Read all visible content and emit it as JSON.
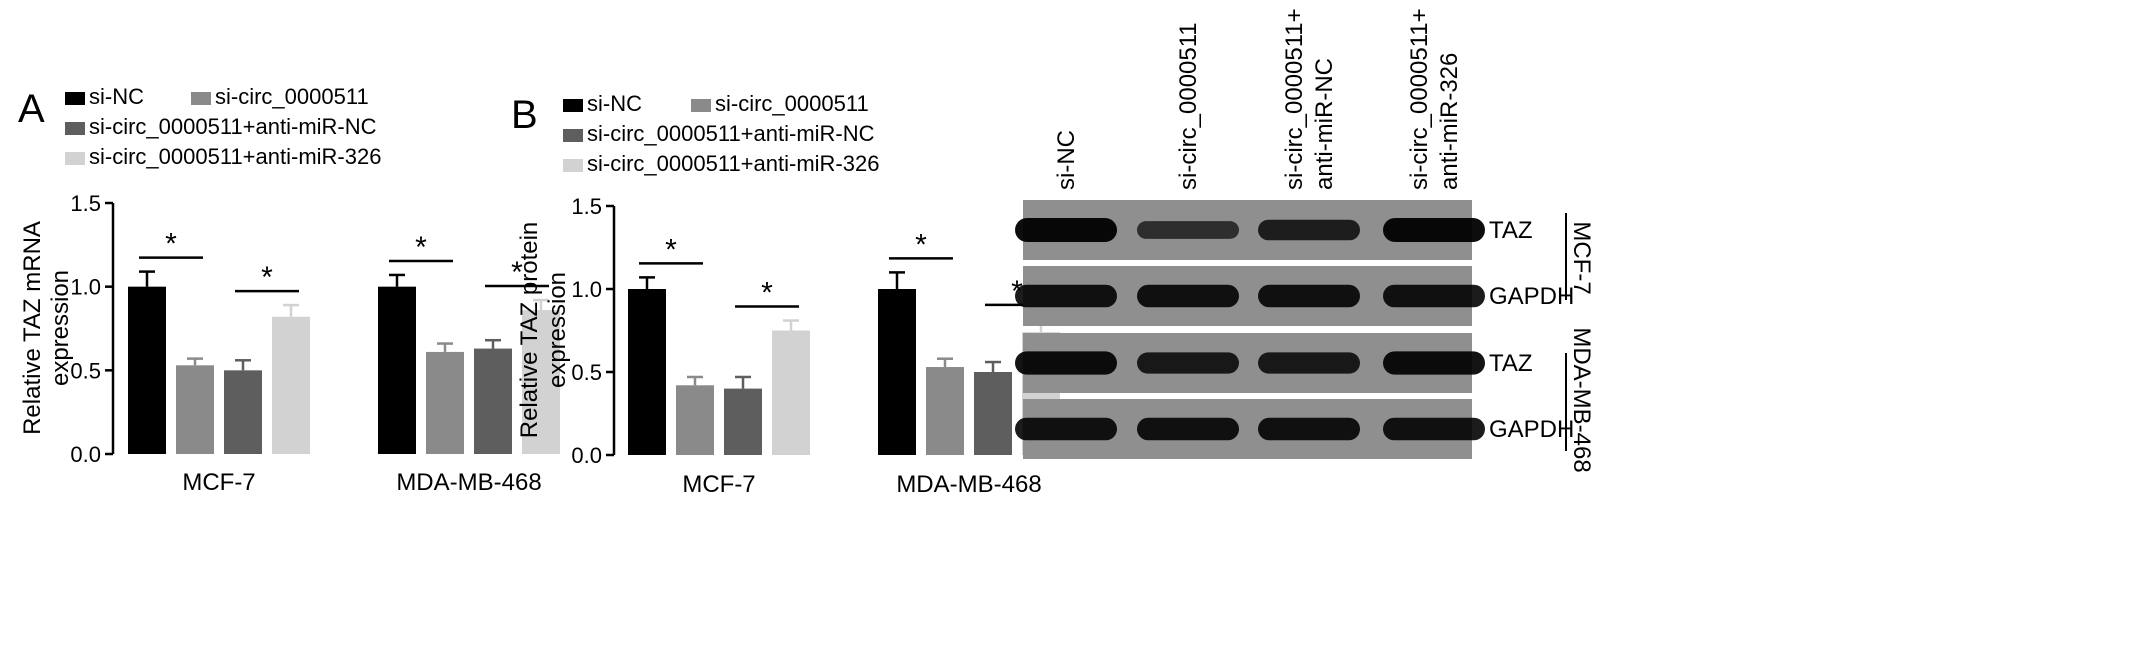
{
  "colors": {
    "si-NC": "#000000",
    "si-circ_0000511": "#8a8a8a",
    "si-circ_0000511+anti-miR-NC": "#5e5e5e",
    "si-circ_0000511+anti-miR-326": "#d2d2d2"
  },
  "chart_data": [
    {
      "type": "bar",
      "panel_label": "A",
      "ylabel": "Relative TAZ mRNA expression",
      "ylim": [
        0,
        1.5
      ],
      "yticks": [
        "0.0",
        "0.5",
        "1.0",
        "1.5"
      ],
      "categories": [
        "MCF-7",
        "MDA-MB-468"
      ],
      "legend": [
        "si-NC",
        "si-circ_0000511",
        "si-circ_0000511+anti-miR-NC",
        "si-circ_0000511+anti-miR-326"
      ],
      "series": [
        {
          "name": "si-NC",
          "values": [
            1.0,
            1.0
          ],
          "errors": [
            0.09,
            0.07
          ]
        },
        {
          "name": "si-circ_0000511",
          "values": [
            0.53,
            0.61
          ],
          "errors": [
            0.04,
            0.05
          ]
        },
        {
          "name": "si-circ_0000511+anti-miR-NC",
          "values": [
            0.5,
            0.63
          ],
          "errors": [
            0.06,
            0.05
          ]
        },
        {
          "name": "si-circ_0000511+anti-miR-326",
          "values": [
            0.82,
            0.86
          ],
          "errors": [
            0.07,
            0.06
          ]
        }
      ],
      "significance": [
        {
          "category": 0,
          "from": 0,
          "to": 1,
          "label": "*"
        },
        {
          "category": 0,
          "from": 2,
          "to": 3,
          "label": "*"
        },
        {
          "category": 1,
          "from": 0,
          "to": 1,
          "label": "*"
        },
        {
          "category": 1,
          "from": 2,
          "to": 3,
          "label": "*"
        }
      ]
    },
    {
      "type": "bar",
      "panel_label": "B",
      "ylabel": "Relative TAZ protein expression",
      "ylim": [
        0,
        1.5
      ],
      "yticks": [
        "0.0",
        "0.5",
        "1.0",
        "1.5"
      ],
      "categories": [
        "MCF-7",
        "MDA-MB-468"
      ],
      "legend": [
        "si-NC",
        "si-circ_0000511",
        "si-circ_0000511+anti-miR-NC",
        "si-circ_0000511+anti-miR-326"
      ],
      "series": [
        {
          "name": "si-NC",
          "values": [
            1.0,
            1.0
          ],
          "errors": [
            0.07,
            0.1
          ]
        },
        {
          "name": "si-circ_0000511",
          "values": [
            0.42,
            0.53
          ],
          "errors": [
            0.05,
            0.05
          ]
        },
        {
          "name": "si-circ_0000511+anti-miR-NC",
          "values": [
            0.4,
            0.5
          ],
          "errors": [
            0.07,
            0.06
          ]
        },
        {
          "name": "si-circ_0000511+anti-miR-326",
          "values": [
            0.75,
            0.74
          ],
          "errors": [
            0.06,
            0.08
          ]
        }
      ],
      "significance": [
        {
          "category": 0,
          "from": 0,
          "to": 1,
          "label": "*"
        },
        {
          "category": 0,
          "from": 2,
          "to": 3,
          "label": "*"
        },
        {
          "category": 1,
          "from": 0,
          "to": 1,
          "label": "*"
        },
        {
          "category": 1,
          "from": 2,
          "to": 3,
          "label": "*"
        }
      ]
    }
  ],
  "western_blot": {
    "lanes": [
      "si-NC",
      "si-circ_0000511",
      "si-circ_0000511+\nanti-miR-NC",
      "si-circ_0000511+\nanti-miR-326"
    ],
    "rows": [
      {
        "label": "TAZ",
        "cell_line": "MCF-7",
        "intensities": [
          1.0,
          0.55,
          0.75,
          1.0
        ]
      },
      {
        "label": "GAPDH",
        "cell_line": "MCF-7",
        "intensities": [
          0.9,
          0.9,
          0.9,
          0.9
        ]
      },
      {
        "label": "TAZ",
        "cell_line": "MDA-MB-468",
        "intensities": [
          0.95,
          0.8,
          0.8,
          0.95
        ]
      },
      {
        "label": "GAPDH",
        "cell_line": "MDA-MB-468",
        "intensities": [
          0.9,
          0.9,
          0.9,
          0.9
        ]
      }
    ],
    "cell_lines": [
      "MCF-7",
      "MDA-MB-468"
    ]
  }
}
